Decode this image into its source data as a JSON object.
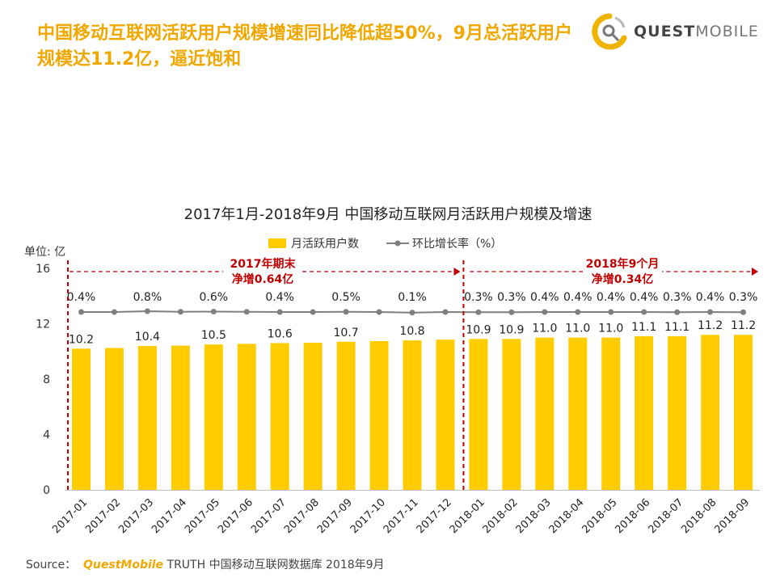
{
  "headline": "中国移动互联网活跃用户规模增速同比降低超50%，9月总活跃用户规模达11.2亿，逼近饱和",
  "logo": {
    "text_bold": "QUEST",
    "text_light": "MOBILE",
    "icon": "questmobile-q-logo-icon"
  },
  "source": {
    "prefix": "Source：",
    "brand": "QuestMobile",
    "rest": " TRUTH 中国移动互联网数据库 2018年9月"
  },
  "colors": {
    "accent": "#f0a800",
    "bar": "#ffcc00",
    "line": "#7f7f7f",
    "annotation": "#c00000"
  },
  "chart_data": {
    "type": "bar",
    "title": "2017年1月-2018年9月 中国移动互联网月活跃用户规模及增速",
    "ylabel": "单位: 亿",
    "ylim": [
      0,
      16
    ],
    "yticks": [
      "0",
      "4",
      "8",
      "12",
      "16"
    ],
    "categories": [
      "2017-01",
      "2017-02",
      "2017-03",
      "2017-04",
      "2017-05",
      "2017-06",
      "2017-07",
      "2017-08",
      "2017-09",
      "2017-10",
      "2017-11",
      "2017-12",
      "2018-01",
      "2018-02",
      "2018-03",
      "2018-04",
      "2018-05",
      "2018-06",
      "2018-07",
      "2018-08",
      "2018-09"
    ],
    "series": [
      {
        "name": "月活跃用户数",
        "type": "bar",
        "values": [
          10.2,
          10.25,
          10.4,
          10.42,
          10.5,
          10.55,
          10.6,
          10.63,
          10.7,
          10.75,
          10.8,
          10.85,
          10.9,
          10.9,
          11.0,
          11.0,
          11.0,
          11.1,
          11.1,
          11.2,
          11.2
        ],
        "labels": [
          "10.2",
          "",
          "10.4",
          "",
          "10.5",
          "",
          "10.6",
          "",
          "10.7",
          "",
          "10.8",
          "",
          "10.9",
          "10.9",
          "11.0",
          "11.0",
          "11.0",
          "11.1",
          "11.1",
          "11.2",
          "11.2"
        ]
      },
      {
        "name": "环比增长率（%）",
        "type": "line",
        "values": [
          0.4,
          0.4,
          0.8,
          0.5,
          0.6,
          0.5,
          0.4,
          0.4,
          0.5,
          0.4,
          0.1,
          0.4,
          0.3,
          0.3,
          0.4,
          0.4,
          0.4,
          0.4,
          0.3,
          0.4,
          0.3
        ],
        "labels": [
          "0.4%",
          "",
          "0.8%",
          "",
          "0.6%",
          "",
          "0.4%",
          "",
          "0.5%",
          "",
          "0.1%",
          "",
          "0.3%",
          "0.3%",
          "0.4%",
          "0.4%",
          "0.4%",
          "0.4%",
          "0.3%",
          "0.4%",
          "0.3%"
        ]
      }
    ],
    "legend_position": "top-center",
    "annotations": [
      {
        "line1": "2017年期末",
        "line2": "净增0.64亿",
        "from": "2017-01",
        "to": "2017-12"
      },
      {
        "line1": "2018年9个月",
        "line2": "净增0.34亿",
        "from": "2018-01",
        "to": "2018-09"
      }
    ]
  }
}
